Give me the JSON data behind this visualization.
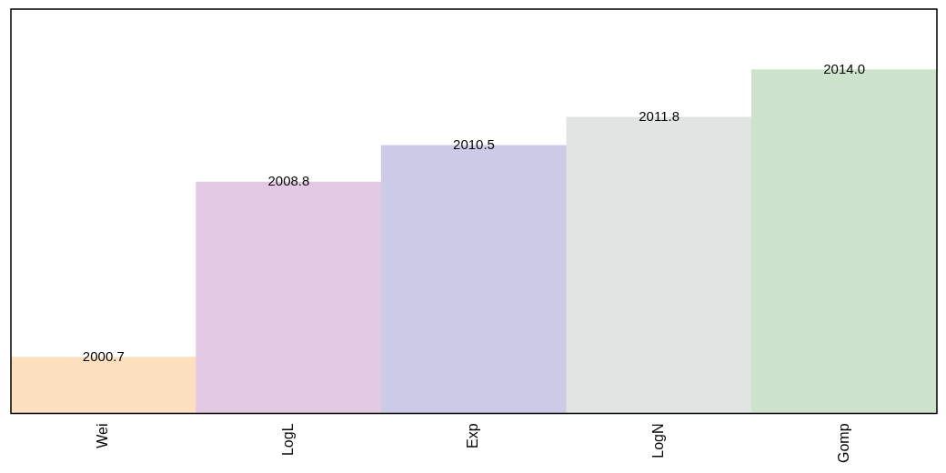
{
  "chart_data": {
    "type": "bar",
    "categories": [
      "Wei",
      "LogL",
      "Exp",
      "LogN",
      "Gomp"
    ],
    "values": [
      2000.7,
      2008.8,
      2010.5,
      2011.8,
      2014.0
    ],
    "colors": [
      "#fde0c0",
      "#e4c9e4",
      "#cccce8",
      "#e1e4e2",
      "#cde3cc"
    ],
    "value_labels": [
      "2000.7",
      "2008.8",
      "2010.5",
      "2011.8",
      "2014.0"
    ],
    "ylim": [
      1998.1,
      2016.8
    ],
    "tick_labels": "x",
    "grid": false,
    "legend": false
  }
}
